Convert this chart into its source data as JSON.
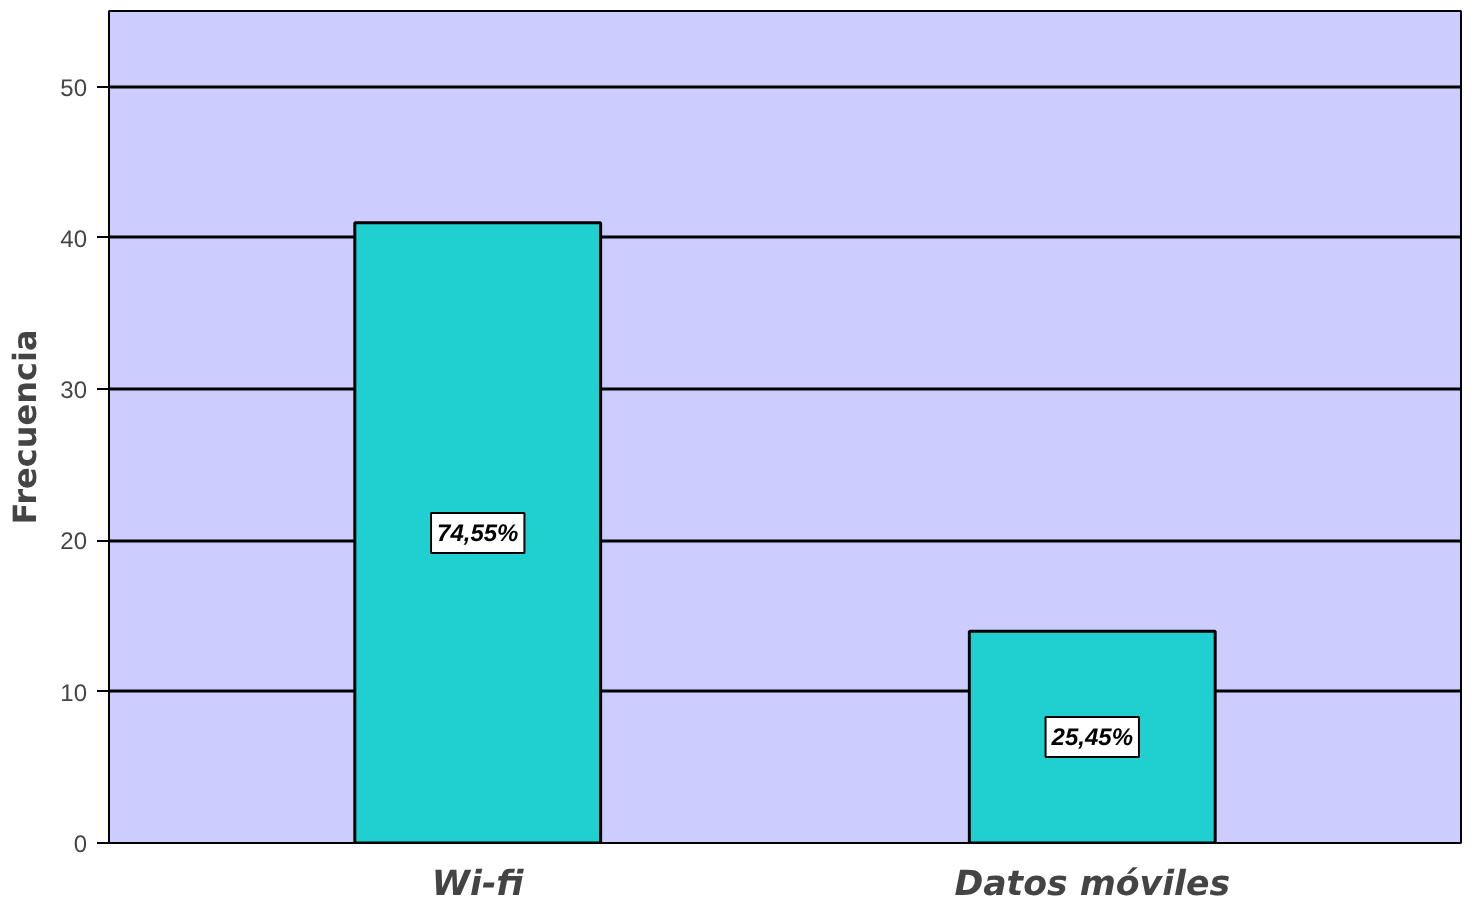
{
  "chart_data": {
    "type": "bar",
    "ylabel": "Frecuencia",
    "categories": [
      "Wi-fi",
      "Datos móviles"
    ],
    "values": [
      41,
      14
    ],
    "annotations": [
      "74,55%",
      "25,45%"
    ],
    "color": "#20cfcf",
    "ylim": [
      0,
      55
    ],
    "yticks": [
      0,
      10,
      20,
      30,
      40,
      50
    ],
    "grid": "y"
  }
}
